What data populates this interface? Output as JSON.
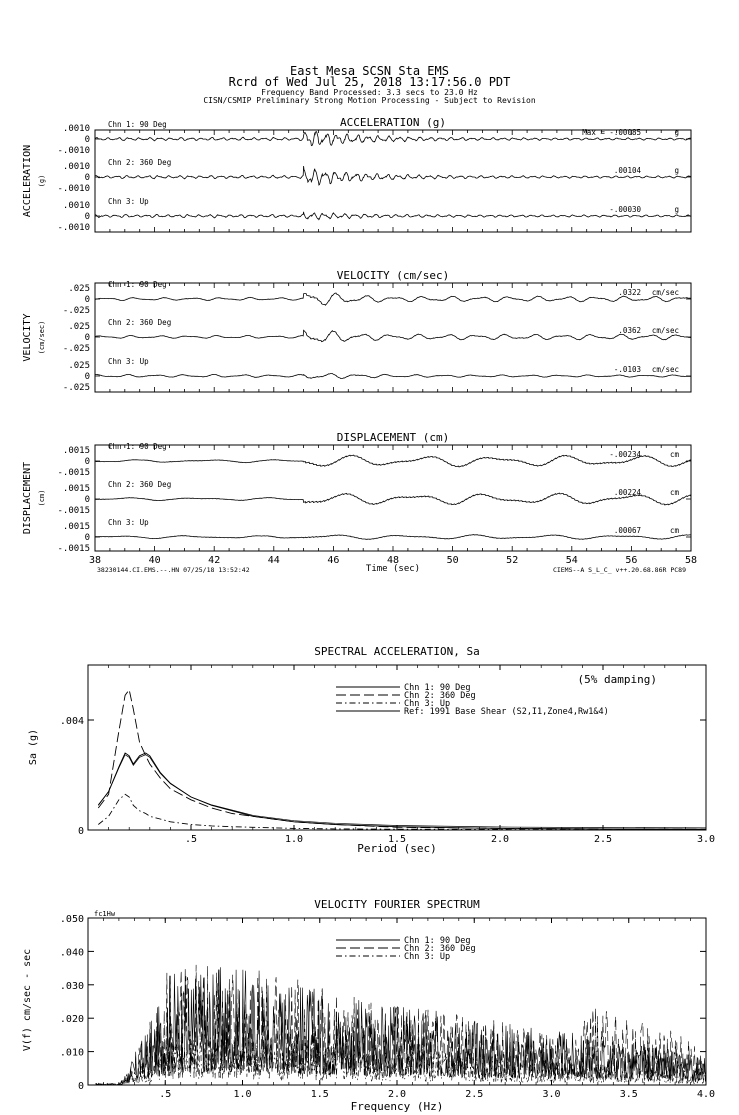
{
  "header": {
    "line1": "East Mesa    SCSN Sta EMS",
    "line2": "Rcrd of Wed Jul 25, 2018 13:17:56.0 PDT",
    "line3": "Frequency Band Processed: 3.3 secs to 23.0 Hz",
    "line4": "CISN/CSMIP Preliminary Strong Motion Processing - Subject to Revision"
  },
  "chart_data": [
    {
      "type": "line",
      "title": "ACCELERATION (g)",
      "ylabel": "ACCELERATION",
      "yunit": "(g)",
      "xlim": [
        38,
        58
      ],
      "ylim": [
        -0.001,
        0.001
      ],
      "ytick_labels": [
        ".0010",
        "0",
        "-.0010"
      ],
      "channels": [
        {
          "name": "Chn 1: 90 Deg",
          "peak_label": "Max =  -.00085",
          "unit": "g"
        },
        {
          "name": "Chn 2: 360 Deg",
          "peak_label": ".00104",
          "unit": "g"
        },
        {
          "name": "Chn 3: Up",
          "peak_label": "-.00030",
          "unit": "g"
        }
      ]
    },
    {
      "type": "line",
      "title": "VELOCITY (cm/sec)",
      "ylabel": "VELOCITY",
      "yunit": "(cm/sec)",
      "xlim": [
        38,
        58
      ],
      "ylim": [
        -0.025,
        0.025
      ],
      "ytick_labels": [
        ".025",
        "0",
        "-.025"
      ],
      "channels": [
        {
          "name": "Chn 1: 90 Deg",
          "peak_label": ".0322",
          "unit": "cm/sec"
        },
        {
          "name": "Chn 2: 360 Deg",
          "peak_label": ".0362",
          "unit": "cm/sec"
        },
        {
          "name": "Chn 3: Up",
          "peak_label": "-.0103",
          "unit": "cm/sec"
        }
      ]
    },
    {
      "type": "line",
      "title": "DISPLACEMENT (cm)",
      "ylabel": "DISPLACEMENT",
      "yunit": "(cm)",
      "xlim": [
        38,
        58
      ],
      "ylim": [
        -0.0015,
        0.0015
      ],
      "ytick_labels": [
        ".0015",
        "0",
        "-.0015"
      ],
      "xticks": [
        38,
        40,
        42,
        44,
        46,
        48,
        50,
        52,
        54,
        56,
        58
      ],
      "xlabel": "Time (sec)",
      "footer_left": "38230144.CI.EMS.--.HN 07/25/18 13:52:42",
      "footer_right": "CIEMS--A  S_L_C_  v++.20.68.86R PC89",
      "channels": [
        {
          "name": "Chn 1: 90 Deg",
          "peak_label": "-.00234",
          "unit": "cm"
        },
        {
          "name": "Chn 2: 360 Deg",
          "peak_label": ".00224",
          "unit": "cm"
        },
        {
          "name": "Chn 3: Up",
          "peak_label": ".00067",
          "unit": "cm"
        }
      ]
    },
    {
      "type": "line",
      "title": "SPECTRAL ACCELERATION, Sa",
      "annotation": "(5% damping)",
      "xlabel": "Period (sec)",
      "ylabel": "Sa (g)",
      "xlim": [
        0,
        3.0
      ],
      "ylim": [
        0,
        0.006
      ],
      "xticks": [
        0.5,
        1.0,
        1.5,
        2.0,
        2.5,
        3.0
      ],
      "xtick_labels": [
        ".5",
        "1.0",
        "1.5",
        "2.0",
        "2.5",
        "3.0"
      ],
      "yticks": [
        0,
        0.004
      ],
      "ytick_labels": [
        "0",
        ".004"
      ],
      "legend_position": "top-center",
      "x": [
        0.05,
        0.1,
        0.15,
        0.18,
        0.2,
        0.22,
        0.25,
        0.28,
        0.3,
        0.35,
        0.4,
        0.5,
        0.6,
        0.7,
        0.8,
        1.0,
        1.2,
        1.5,
        2.0,
        2.5,
        3.0
      ],
      "series": [
        {
          "name": "Chn 1: 90 Deg",
          "style": "solid",
          "values": [
            0.0009,
            0.0014,
            0.0023,
            0.0028,
            0.0027,
            0.0024,
            0.0027,
            0.0028,
            0.0027,
            0.0021,
            0.0017,
            0.0012,
            0.0009,
            0.0007,
            0.0005,
            0.0003,
            0.0002,
            0.00012,
            6e-05,
            4e-05,
            3e-05
          ]
        },
        {
          "name": "Chn 2: 360 Deg",
          "style": "long-dash",
          "values": [
            0.0008,
            0.0013,
            0.0036,
            0.0049,
            0.0051,
            0.0044,
            0.0032,
            0.0027,
            0.0024,
            0.0019,
            0.0015,
            0.0011,
            0.0008,
            0.0006,
            0.0005,
            0.0003,
            0.0002,
            0.0001,
            6e-05,
            4e-05,
            3e-05
          ]
        },
        {
          "name": "Chn 3: Up",
          "style": "dash-dot",
          "values": [
            0.0002,
            0.0005,
            0.0011,
            0.0013,
            0.0012,
            0.0009,
            0.0007,
            0.0006,
            0.0005,
            0.0004,
            0.0003,
            0.0002,
            0.00015,
            0.00012,
            0.0001,
            6e-05,
            4e-05,
            3e-05,
            2e-05,
            1e-05,
            1e-05
          ]
        }
      ],
      "reference": {
        "name": "Ref: 1991 Base Shear (S2,I1,Zone4,Rw1&4)",
        "style": "solid"
      }
    },
    {
      "type": "line",
      "title": "VELOCITY FOURIER SPECTRUM",
      "corner_label": "fc1Hw",
      "xlabel": "Frequency (Hz)",
      "ylabel": "V(f)  cm/sec - sec",
      "xlim": [
        0,
        4.0
      ],
      "ylim": [
        0,
        0.05
      ],
      "xticks": [
        0.5,
        1.0,
        1.5,
        2.0,
        2.5,
        3.0,
        3.5,
        4.0
      ],
      "xtick_labels": [
        ".5",
        "1.0",
        "1.5",
        "2.0",
        "2.5",
        "3.0",
        "3.5",
        "4.0"
      ],
      "yticks": [
        0,
        0.01,
        0.02,
        0.03,
        0.04,
        0.05
      ],
      "ytick_labels": [
        "0",
        ".010",
        ".020",
        ".030",
        ".040",
        ".050"
      ],
      "legend_position": "top-center",
      "series": [
        {
          "name": "Chn 1: 90 Deg",
          "style": "solid"
        },
        {
          "name": "Chn 2: 360 Deg",
          "style": "long-dash"
        },
        {
          "name": "Chn 3: Up",
          "style": "dash-dot"
        }
      ]
    }
  ]
}
